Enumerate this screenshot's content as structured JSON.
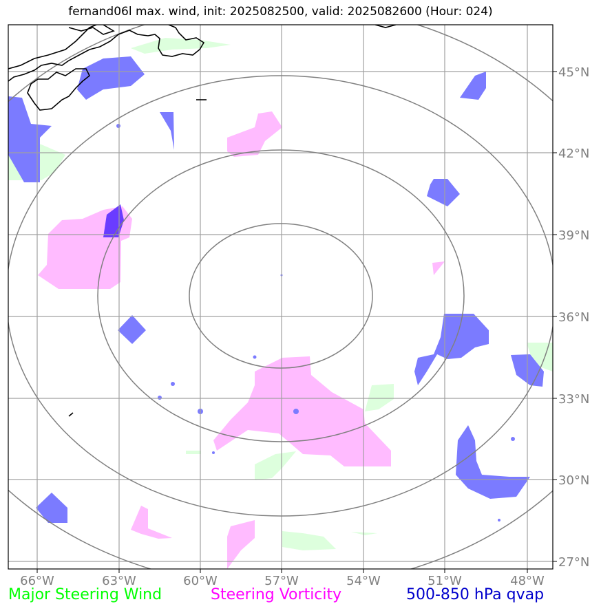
{
  "title": "fernand06l max. wind, init: 2025082500, valid: 2025082600 (Hour: 024)",
  "map": {
    "lon_labels": [
      "66°W",
      "63°W",
      "60°W",
      "57°W",
      "54°W",
      "51°W",
      "48°W"
    ],
    "lat_labels": [
      "45°N",
      "42°N",
      "39°N",
      "36°N",
      "33°N",
      "30°N",
      "27°N"
    ],
    "grid_color": "#a0a0a0",
    "ring_color": "#808080",
    "coast_color": "#000000"
  },
  "legend": {
    "major_steering_wind": {
      "label": "Major Steering Wind",
      "color": "#00ff00"
    },
    "steering_vorticity": {
      "label": "Steering Vorticity",
      "color": "#ff00ff"
    },
    "qvap": {
      "label": "500-850 hPa qvap",
      "color": "#0000cc"
    }
  },
  "fills": {
    "wind": "#ddffdd",
    "vorticity": "#ffbbff",
    "qvap": "#7b7bff"
  }
}
